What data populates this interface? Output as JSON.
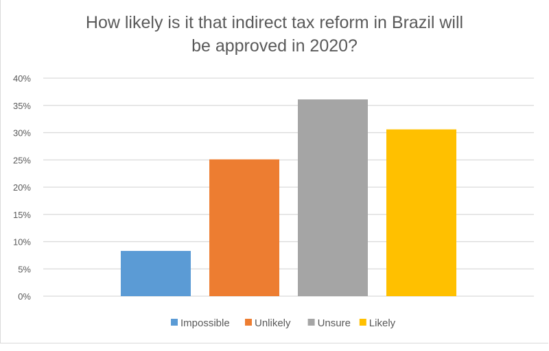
{
  "chart_data": {
    "type": "bar",
    "title_line1": "How likely is it that indirect tax reform in Brazil will",
    "title_line2": "be approved in 2020?",
    "xlabel": "",
    "ylabel": "",
    "ylim": [
      0,
      40
    ],
    "yticks": [
      "0%",
      "5%",
      "10%",
      "15%",
      "20%",
      "25%",
      "30%",
      "35%",
      "40%"
    ],
    "grid": true,
    "legend_position": "bottom",
    "series": [
      {
        "name": "Impossible",
        "value": 8.3,
        "color": "#5b9bd5"
      },
      {
        "name": "Unlikely",
        "value": 25.1,
        "color": "#ed7d31"
      },
      {
        "name": "Unsure",
        "value": 36.1,
        "color": "#a5a5a5"
      },
      {
        "name": "Likely",
        "value": 30.6,
        "color": "#ffc000"
      }
    ]
  }
}
